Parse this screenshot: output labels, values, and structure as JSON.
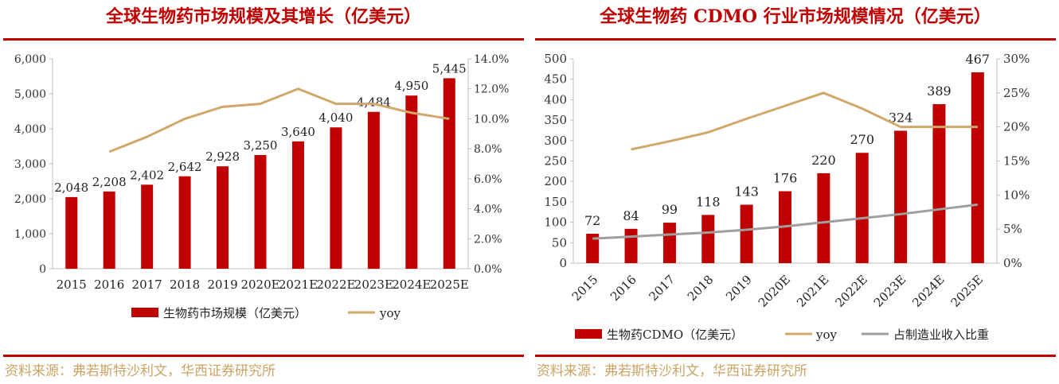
{
  "colors": {
    "bar": "#c00000",
    "yoy": "#cfa86a",
    "share": "#9f9f9f",
    "title": "#c00000",
    "source": "#c9a464",
    "axis": "#bfbfbf"
  },
  "left": {
    "title": "全球生物药市场规模及其增长（亿美元）",
    "source": "资料来源：弗若斯特沙利文，华西证券研究所",
    "chart_data": {
      "type": "bar",
      "categories": [
        "2015",
        "2016",
        "2017",
        "2018",
        "2019",
        "2020E",
        "2021E",
        "2022E",
        "2023E",
        "2024E",
        "2025E"
      ],
      "series": [
        {
          "name": "生物药市场规模（亿美元）",
          "type": "bar",
          "axis": "left",
          "values": [
            2048,
            2208,
            2402,
            2642,
            2928,
            3250,
            3640,
            4040,
            4484,
            4950,
            5445
          ],
          "labels": [
            "2,048",
            "2,208",
            "2,402",
            "2,642",
            "2,928",
            "3,250",
            "3,640",
            "4,040",
            "4,484",
            "4,950",
            "5,445"
          ]
        },
        {
          "name": "yoy",
          "type": "line",
          "axis": "right",
          "values": [
            null,
            7.8,
            8.8,
            10.0,
            10.8,
            11.0,
            12.0,
            11.0,
            11.0,
            10.4,
            10.0
          ]
        }
      ],
      "ylim": [
        0,
        6000
      ],
      "y_ticks": [
        "0",
        "1,000",
        "2,000",
        "3,000",
        "4,000",
        "5,000",
        "6,000"
      ],
      "y2lim": [
        0,
        14
      ],
      "y2_ticks": [
        "0.0%",
        "2.0%",
        "4.0%",
        "6.0%",
        "8.0%",
        "10.0%",
        "12.0%",
        "14.0%"
      ],
      "legend": [
        "生物药市场规模（亿美元）",
        "yoy"
      ],
      "legend_position": "bottom"
    }
  },
  "right": {
    "title": "全球生物药 CDMO 行业市场规模情况（亿美元）",
    "source": "资料来源：弗若斯特沙利文，华西证券研究所",
    "chart_data": {
      "type": "bar",
      "categories": [
        "2015",
        "2016",
        "2017",
        "2018",
        "2019",
        "2020E",
        "2021E",
        "2022E",
        "2023E",
        "2024E",
        "2025E"
      ],
      "series": [
        {
          "name": "生物药CDMO（亿美元）",
          "type": "bar",
          "axis": "left",
          "values": [
            72,
            84,
            99,
            118,
            143,
            176,
            220,
            270,
            324,
            389,
            467
          ]
        },
        {
          "name": "yoy",
          "type": "line",
          "axis": "right",
          "values": [
            null,
            16.7,
            17.9,
            19.2,
            21.2,
            23.1,
            25.0,
            22.7,
            20.0,
            20.0,
            20.0
          ]
        },
        {
          "name": "占制造业收入比重",
          "type": "line",
          "axis": "right",
          "values": [
            3.6,
            3.9,
            4.2,
            4.5,
            4.9,
            5.4,
            6.0,
            6.6,
            7.2,
            7.9,
            8.6
          ]
        }
      ],
      "ylim": [
        0,
        500
      ],
      "y_ticks": [
        "0",
        "50",
        "100",
        "150",
        "200",
        "250",
        "300",
        "350",
        "400",
        "450",
        "500"
      ],
      "y2lim": [
        0,
        30
      ],
      "y2_ticks": [
        "0%",
        "5%",
        "10%",
        "15%",
        "20%",
        "25%",
        "30%"
      ],
      "legend": [
        "生物药CDMO（亿美元）",
        "yoy",
        "占制造业收入比重"
      ],
      "legend_position": "bottom"
    }
  }
}
